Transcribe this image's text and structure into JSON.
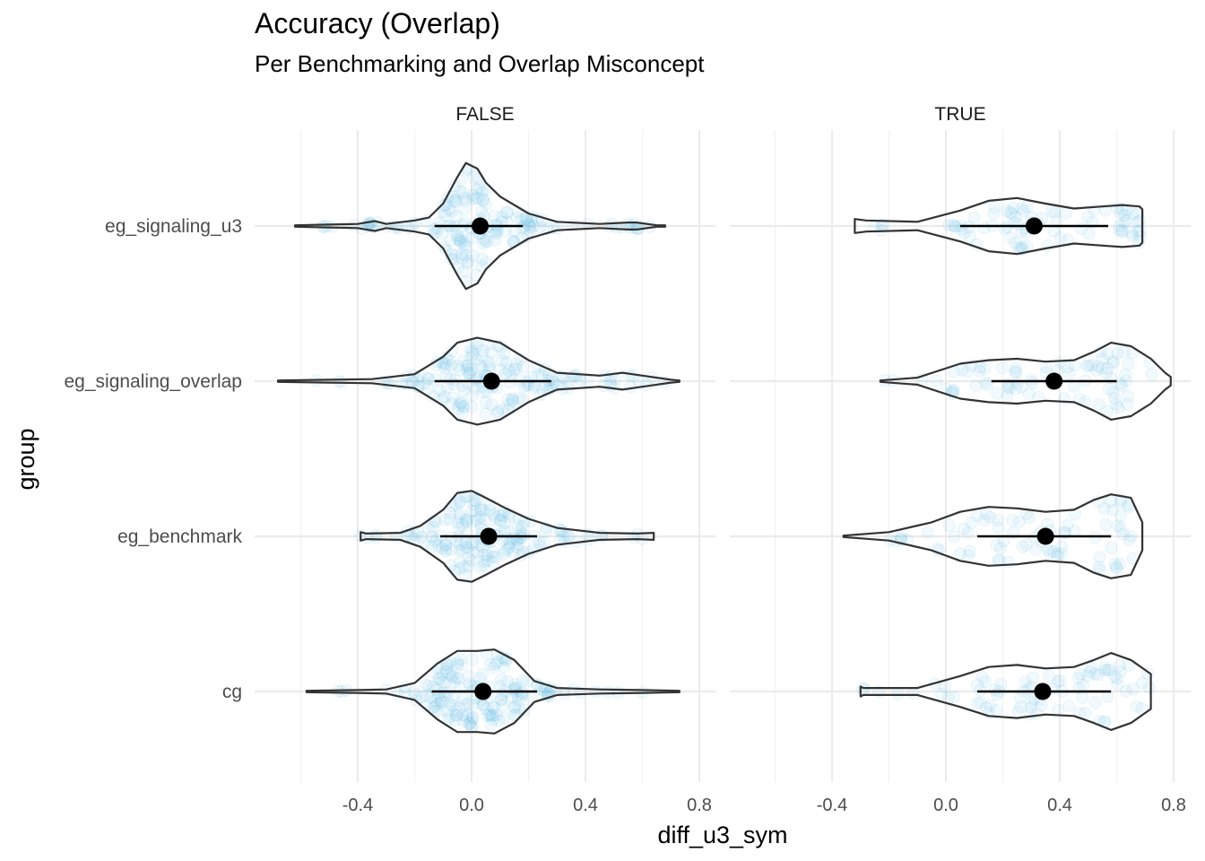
{
  "title": "Accuracy (Overlap)",
  "subtitle": "Per Benchmarking and Overlap Misconcept",
  "chart_data": {
    "type": "violin",
    "title": "Accuracy (Overlap)",
    "subtitle": "Per Benchmarking and Overlap Misconcept",
    "xlabel": "diff_u3_sym",
    "ylabel": "group",
    "xlim": [
      -0.65,
      0.84
    ],
    "xticks": [
      -0.4,
      0.0,
      0.4,
      0.8
    ],
    "xtick_labels": [
      "-0.4",
      "0.0",
      "0.4",
      "0.8"
    ],
    "groups": [
      "eg_signaling_u3",
      "eg_signaling_overlap",
      "eg_benchmark",
      "cg"
    ],
    "facets": [
      "FALSE",
      "TRUE"
    ],
    "grid": true,
    "colors": {
      "violin_outline": "#333333",
      "points": "#56B4E9",
      "summary": "#000000",
      "grid": "#ebebeb"
    },
    "panels": [
      {
        "facet": "FALSE",
        "series": [
          {
            "group": "eg_signaling_u3",
            "mean": 0.03,
            "interval": [
              -0.13,
              0.18
            ],
            "violin": [
              [
                -0.62,
                0.01
              ],
              [
                -0.5,
                0.02
              ],
              [
                -0.4,
                0.03
              ],
              [
                -0.34,
                0.07
              ],
              [
                -0.3,
                0.03
              ],
              [
                -0.2,
                0.08
              ],
              [
                -0.15,
                0.12
              ],
              [
                -0.1,
                0.32
              ],
              [
                -0.05,
                0.7
              ],
              [
                -0.02,
                0.9
              ],
              [
                0.02,
                0.82
              ],
              [
                0.05,
                0.62
              ],
              [
                0.1,
                0.42
              ],
              [
                0.2,
                0.18
              ],
              [
                0.3,
                0.06
              ],
              [
                0.45,
                0.03
              ],
              [
                0.55,
                0.05
              ],
              [
                0.58,
                0.05
              ],
              [
                0.65,
                0.01
              ],
              [
                0.68,
                0.01
              ]
            ]
          },
          {
            "group": "eg_signaling_overlap",
            "mean": 0.07,
            "interval": [
              -0.13,
              0.28
            ],
            "violin": [
              [
                -0.68,
                0.01
              ],
              [
                -0.5,
                0.02
              ],
              [
                -0.35,
                0.03
              ],
              [
                -0.2,
                0.1
              ],
              [
                -0.1,
                0.35
              ],
              [
                -0.05,
                0.55
              ],
              [
                0.02,
                0.62
              ],
              [
                0.1,
                0.55
              ],
              [
                0.2,
                0.3
              ],
              [
                0.3,
                0.12
              ],
              [
                0.45,
                0.08
              ],
              [
                0.53,
                0.12
              ],
              [
                0.6,
                0.08
              ],
              [
                0.7,
                0.02
              ],
              [
                0.73,
                0.01
              ]
            ]
          },
          {
            "group": "eg_benchmark",
            "mean": 0.06,
            "interval": [
              -0.11,
              0.23
            ],
            "violin": [
              [
                -0.39,
                0.06
              ],
              [
                -0.37,
                0.04
              ],
              [
                -0.25,
                0.05
              ],
              [
                -0.18,
                0.15
              ],
              [
                -0.1,
                0.38
              ],
              [
                -0.05,
                0.62
              ],
              [
                0.0,
                0.65
              ],
              [
                0.05,
                0.55
              ],
              [
                0.12,
                0.4
              ],
              [
                0.2,
                0.25
              ],
              [
                0.3,
                0.12
              ],
              [
                0.45,
                0.05
              ],
              [
                0.58,
                0.04
              ],
              [
                0.64,
                0.05
              ]
            ]
          },
          {
            "group": "cg",
            "mean": 0.04,
            "interval": [
              -0.14,
              0.23
            ],
            "violin": [
              [
                -0.58,
                0.01
              ],
              [
                -0.4,
                0.02
              ],
              [
                -0.3,
                0.03
              ],
              [
                -0.2,
                0.12
              ],
              [
                -0.12,
                0.4
              ],
              [
                -0.05,
                0.58
              ],
              [
                0.02,
                0.58
              ],
              [
                0.08,
                0.6
              ],
              [
                0.15,
                0.45
              ],
              [
                0.22,
                0.15
              ],
              [
                0.3,
                0.05
              ],
              [
                0.45,
                0.03
              ],
              [
                0.6,
                0.02
              ],
              [
                0.73,
                0.01
              ]
            ]
          }
        ]
      },
      {
        "facet": "TRUE",
        "series": [
          {
            "group": "eg_signaling_u3",
            "mean": 0.31,
            "interval": [
              0.05,
              0.57
            ],
            "violin": [
              [
                -0.32,
                0.1
              ],
              [
                -0.28,
                0.08
              ],
              [
                -0.1,
                0.06
              ],
              [
                0.05,
                0.22
              ],
              [
                0.15,
                0.36
              ],
              [
                0.25,
                0.4
              ],
              [
                0.35,
                0.32
              ],
              [
                0.45,
                0.25
              ],
              [
                0.55,
                0.28
              ],
              [
                0.62,
                0.3
              ],
              [
                0.68,
                0.28
              ],
              [
                0.69,
                0.24
              ]
            ]
          },
          {
            "group": "eg_signaling_overlap",
            "mean": 0.38,
            "interval": [
              0.16,
              0.6
            ],
            "violin": [
              [
                -0.23,
                0.01
              ],
              [
                -0.1,
                0.05
              ],
              [
                0.05,
                0.25
              ],
              [
                0.15,
                0.3
              ],
              [
                0.25,
                0.32
              ],
              [
                0.35,
                0.28
              ],
              [
                0.45,
                0.3
              ],
              [
                0.52,
                0.42
              ],
              [
                0.58,
                0.55
              ],
              [
                0.65,
                0.5
              ],
              [
                0.72,
                0.32
              ],
              [
                0.77,
                0.12
              ],
              [
                0.79,
                0.06
              ]
            ]
          },
          {
            "group": "eg_benchmark",
            "mean": 0.35,
            "interval": [
              0.11,
              0.58
            ],
            "violin": [
              [
                -0.36,
                0.01
              ],
              [
                -0.2,
                0.06
              ],
              [
                -0.05,
                0.2
              ],
              [
                0.05,
                0.35
              ],
              [
                0.15,
                0.42
              ],
              [
                0.25,
                0.4
              ],
              [
                0.35,
                0.35
              ],
              [
                0.45,
                0.38
              ],
              [
                0.52,
                0.52
              ],
              [
                0.58,
                0.6
              ],
              [
                0.65,
                0.55
              ],
              [
                0.69,
                0.2
              ]
            ]
          },
          {
            "group": "cg",
            "mean": 0.34,
            "interval": [
              0.11,
              0.58
            ],
            "violin": [
              [
                -0.3,
                0.07
              ],
              [
                -0.29,
                0.05
              ],
              [
                -0.1,
                0.05
              ],
              [
                0.05,
                0.22
              ],
              [
                0.15,
                0.35
              ],
              [
                0.25,
                0.38
              ],
              [
                0.35,
                0.33
              ],
              [
                0.45,
                0.35
              ],
              [
                0.52,
                0.45
              ],
              [
                0.58,
                0.55
              ],
              [
                0.65,
                0.45
              ],
              [
                0.72,
                0.25
              ]
            ]
          }
        ]
      }
    ]
  }
}
